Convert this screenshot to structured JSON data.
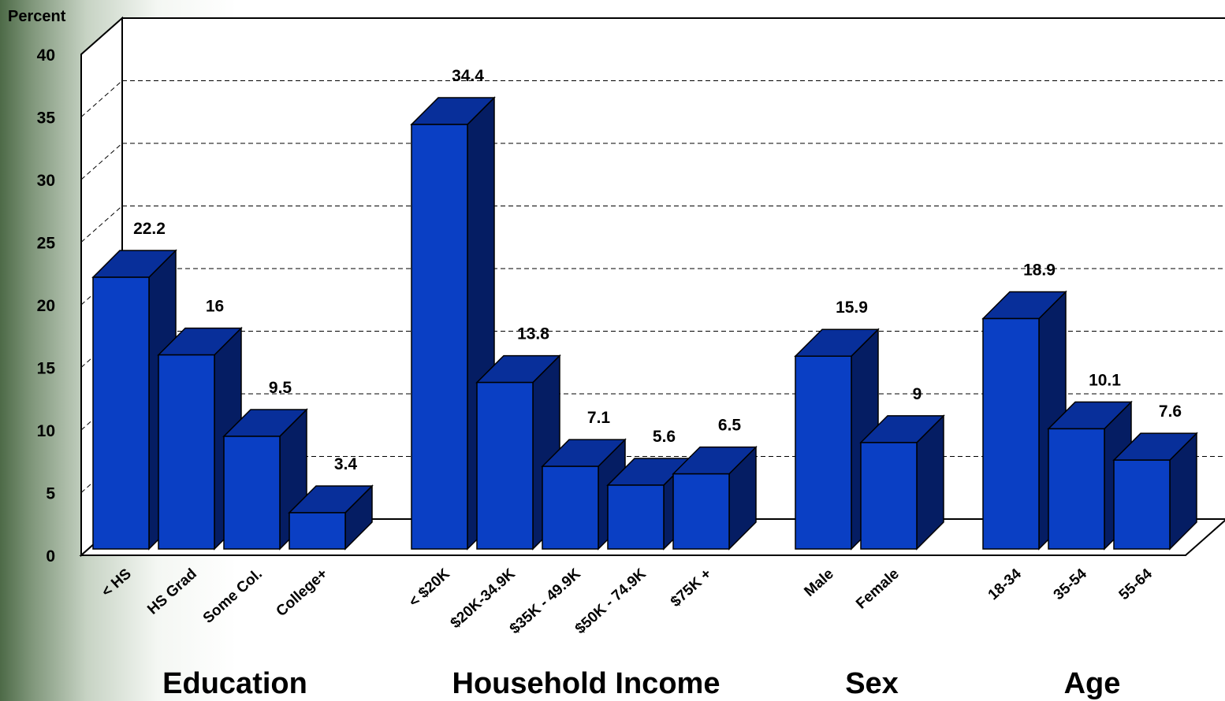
{
  "chart_data": {
    "type": "bar",
    "ylabel": "Percent",
    "ylim": [
      0,
      40
    ],
    "yticks": [
      0,
      5,
      10,
      15,
      20,
      25,
      30,
      35,
      40
    ],
    "grid": true,
    "style": "3d",
    "colors": {
      "front": "#0a3fc4",
      "top": "#082f9a",
      "side": "#051d63",
      "edge": "#000000"
    },
    "groups": [
      {
        "name": "Education",
        "categories": [
          "< HS",
          "HS Grad",
          "Some Col.",
          "College+"
        ],
        "values": [
          22.2,
          16,
          9.5,
          3.4
        ]
      },
      {
        "name": "Household Income",
        "categories": [
          "< $20K",
          "$20K-34.9K",
          "$35K - 49.9K",
          "$50K - 74.9K",
          "$75K +"
        ],
        "values": [
          34.4,
          13.8,
          7.1,
          5.6,
          6.5
        ]
      },
      {
        "name": "Sex",
        "categories": [
          "Male",
          "Female"
        ],
        "values": [
          15.9,
          9
        ]
      },
      {
        "name": "Age",
        "categories": [
          "18-34",
          "35-54",
          "55-64"
        ],
        "values": [
          18.9,
          10.1,
          7.6
        ]
      }
    ]
  }
}
